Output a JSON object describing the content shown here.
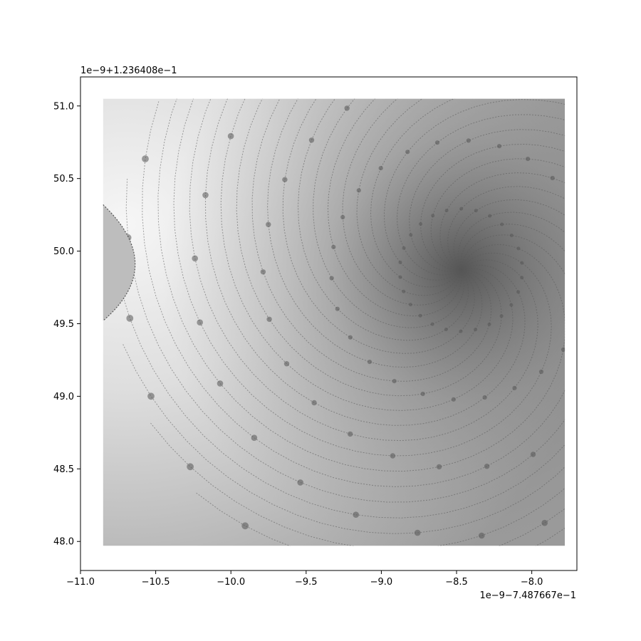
{
  "chart_data": {
    "type": "heatmap",
    "title": "",
    "xlabel": "",
    "ylabel": "",
    "subject": "Mandelbrot set deep zoom (grayscale escape-time image)",
    "colormap": "gray",
    "xlim": [
      -11.0,
      -7.7
    ],
    "ylim": [
      47.8,
      51.2
    ],
    "image_extent": {
      "x": [
        -10.85,
        -7.78
      ],
      "y": [
        47.97,
        51.05
      ]
    },
    "spiral_center": {
      "x": -8.47,
      "y": 49.87
    },
    "x_offset_text": "1e−9−7.487667e−1",
    "y_offset_text": "1e−9+1.236408e−1",
    "xticks": [
      {
        "value": -11.0,
        "label": "−11.0"
      },
      {
        "value": -10.5,
        "label": "−10.5"
      },
      {
        "value": -10.0,
        "label": "−10.0"
      },
      {
        "value": -9.5,
        "label": "−9.5"
      },
      {
        "value": -9.0,
        "label": "−9.0"
      },
      {
        "value": -8.5,
        "label": "−8.5"
      },
      {
        "value": -8.0,
        "label": "−8.0"
      }
    ],
    "yticks": [
      {
        "value": 48.0,
        "label": "48.0"
      },
      {
        "value": 48.5,
        "label": "48.5"
      },
      {
        "value": 49.0,
        "label": "49.0"
      },
      {
        "value": 49.5,
        "label": "49.5"
      },
      {
        "value": 50.0,
        "label": "50.0"
      },
      {
        "value": 50.5,
        "label": "50.5"
      },
      {
        "value": 51.0,
        "label": "51.0"
      }
    ],
    "grid": false,
    "legend": "none"
  }
}
